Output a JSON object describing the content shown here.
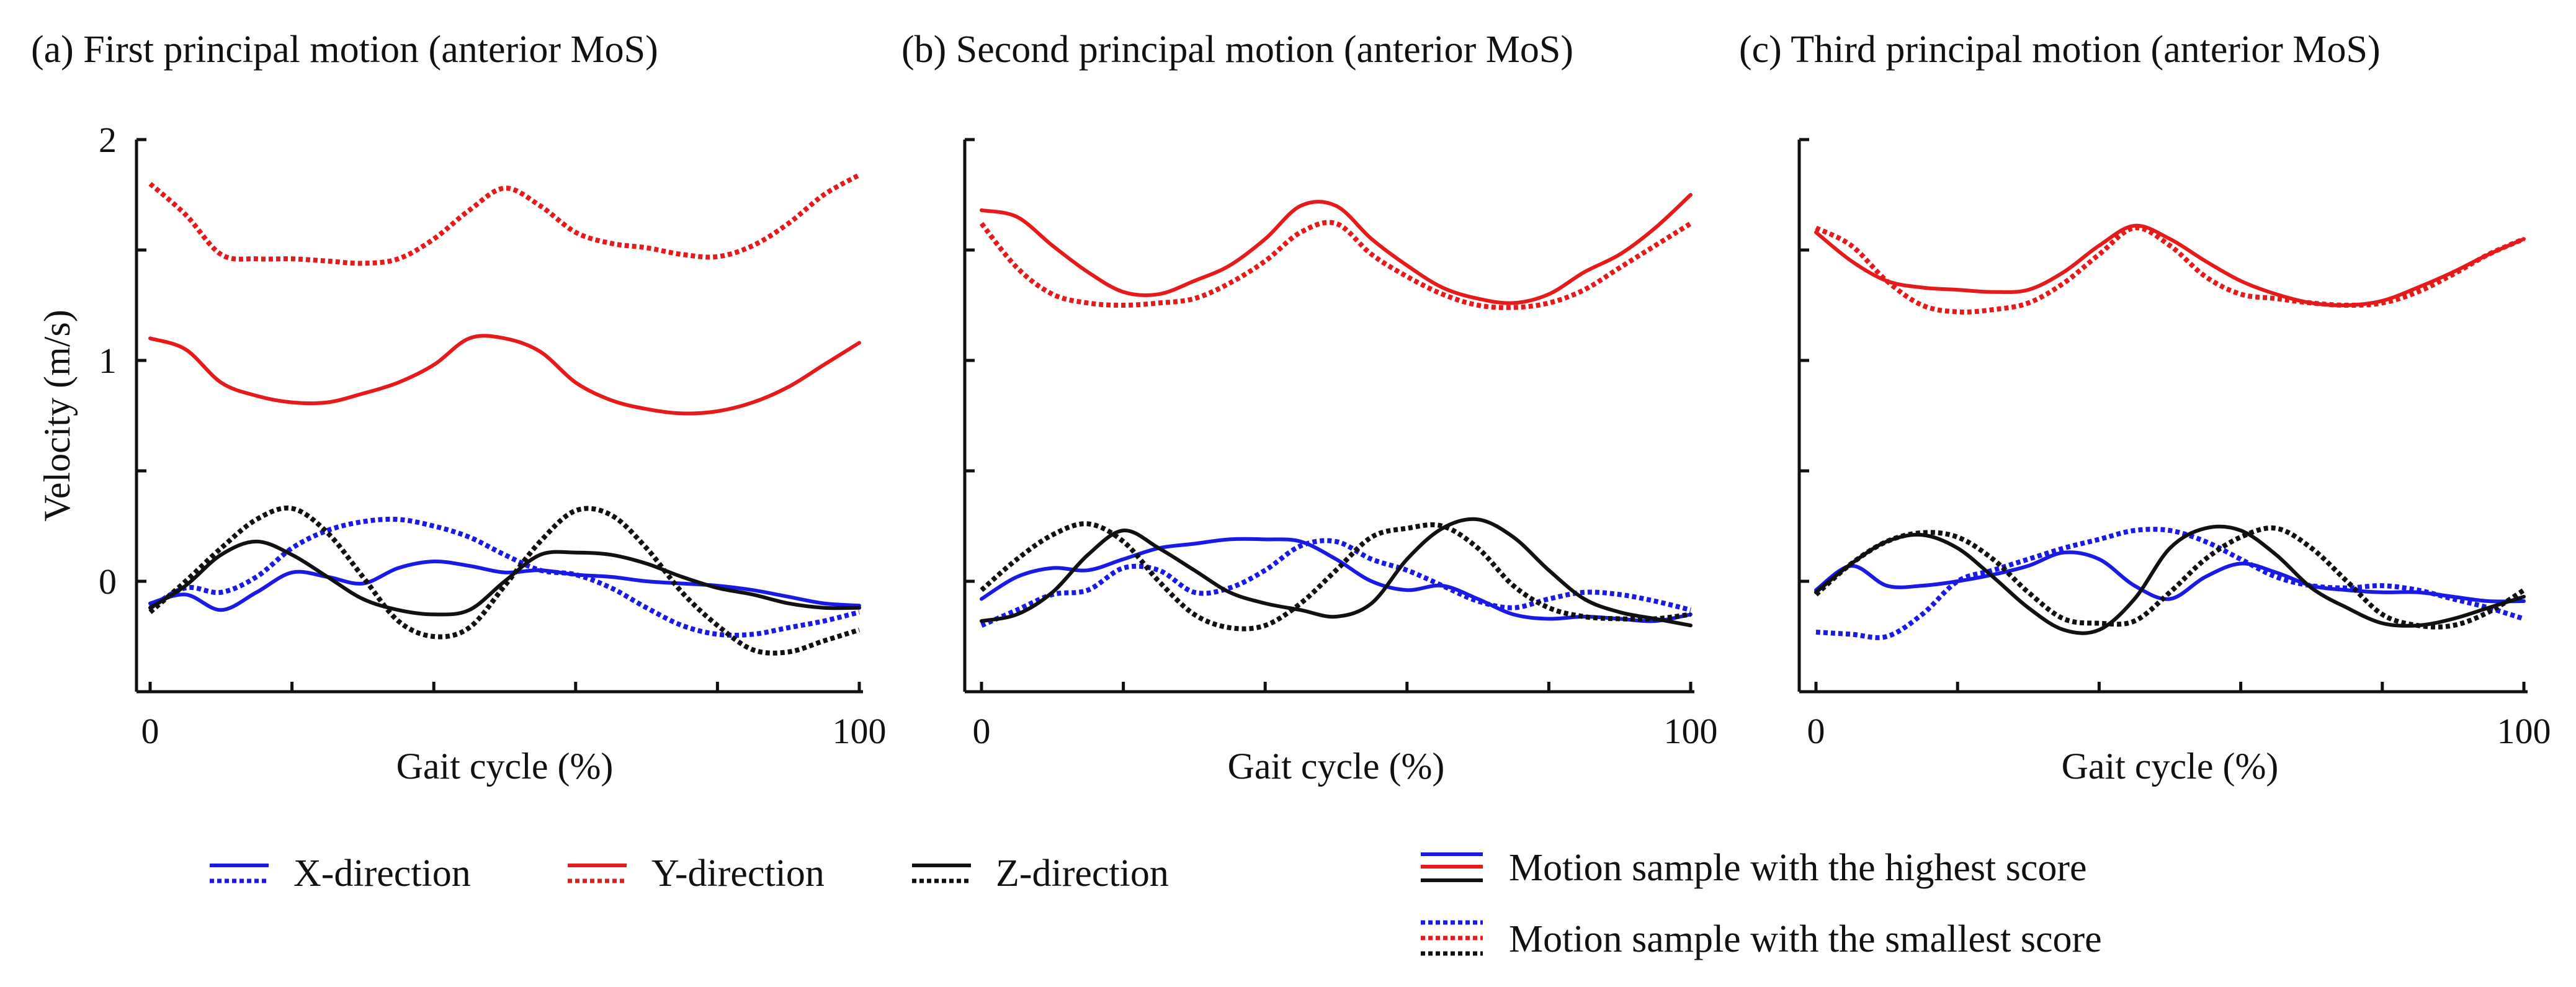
{
  "figure": {
    "legend": {
      "directions": [
        {
          "label": "X-direction",
          "color": "#1a1ae6"
        },
        {
          "label": "Y-direction",
          "color": "#e61a1a"
        },
        {
          "label": "Z-direction",
          "color": "#111111"
        }
      ],
      "styles": [
        {
          "label": "Motion sample with the highest score",
          "style": "solid"
        },
        {
          "label": "Motion sample with the smallest score",
          "style": "dotted"
        }
      ]
    }
  },
  "chart_data": [
    {
      "type": "line",
      "title": "(a) First principal motion (anterior MoS)",
      "xlabel": "Gait cycle (%)",
      "ylabel": "Velocity (m/s)",
      "xlim": [
        0,
        100
      ],
      "ylim": [
        -0.5,
        2
      ],
      "xticks": [
        0,
        20,
        40,
        60,
        80,
        100
      ],
      "xtick_labels": [
        "0",
        "",
        "",
        "",
        "",
        "100"
      ],
      "yticks": [
        0,
        0.5,
        1,
        1.5,
        2
      ],
      "ytick_labels": [
        "0",
        "",
        "1",
        "",
        "2"
      ],
      "series": [
        {
          "name": "X-direction, highest score",
          "color": "#1a1ae6",
          "style": "solid",
          "x": [
            0,
            5,
            10,
            15,
            20,
            25,
            30,
            35,
            40,
            45,
            50,
            55,
            60,
            65,
            70,
            75,
            80,
            85,
            90,
            95,
            100
          ],
          "y": [
            -0.1,
            -0.06,
            -0.13,
            -0.05,
            0.04,
            0.02,
            -0.01,
            0.06,
            0.09,
            0.07,
            0.04,
            0.05,
            0.03,
            0.02,
            0.0,
            -0.01,
            -0.02,
            -0.04,
            -0.07,
            -0.1,
            -0.11
          ]
        },
        {
          "name": "X-direction, smallest score",
          "color": "#1a1ae6",
          "style": "dotted",
          "x": [
            0,
            5,
            10,
            15,
            20,
            25,
            30,
            35,
            40,
            45,
            50,
            55,
            60,
            65,
            70,
            75,
            80,
            85,
            90,
            95,
            100
          ],
          "y": [
            -0.12,
            -0.03,
            -0.05,
            0.02,
            0.15,
            0.23,
            0.27,
            0.28,
            0.25,
            0.2,
            0.12,
            0.05,
            0.03,
            -0.03,
            -0.12,
            -0.2,
            -0.24,
            -0.24,
            -0.21,
            -0.18,
            -0.14
          ]
        },
        {
          "name": "Y-direction, highest score",
          "color": "#e61a1a",
          "style": "solid",
          "x": [
            0,
            5,
            10,
            15,
            20,
            25,
            30,
            35,
            40,
            45,
            50,
            55,
            60,
            65,
            70,
            75,
            80,
            85,
            90,
            95,
            100
          ],
          "y": [
            1.1,
            1.05,
            0.9,
            0.84,
            0.81,
            0.81,
            0.85,
            0.9,
            0.98,
            1.1,
            1.1,
            1.04,
            0.9,
            0.82,
            0.78,
            0.76,
            0.77,
            0.81,
            0.88,
            0.98,
            1.08
          ]
        },
        {
          "name": "Y-direction, smallest score",
          "color": "#e61a1a",
          "style": "dotted",
          "x": [
            0,
            5,
            10,
            15,
            20,
            25,
            30,
            35,
            40,
            45,
            50,
            55,
            60,
            65,
            70,
            75,
            80,
            85,
            90,
            95,
            100
          ],
          "y": [
            1.8,
            1.66,
            1.48,
            1.46,
            1.46,
            1.45,
            1.44,
            1.46,
            1.55,
            1.68,
            1.78,
            1.7,
            1.58,
            1.53,
            1.51,
            1.48,
            1.47,
            1.52,
            1.62,
            1.75,
            1.84
          ]
        },
        {
          "name": "Z-direction, highest score",
          "color": "#111111",
          "style": "solid",
          "x": [
            0,
            5,
            10,
            15,
            20,
            25,
            30,
            35,
            40,
            45,
            50,
            55,
            60,
            65,
            70,
            75,
            80,
            85,
            90,
            95,
            100
          ],
          "y": [
            -0.12,
            -0.02,
            0.12,
            0.18,
            0.12,
            0.02,
            -0.08,
            -0.13,
            -0.15,
            -0.13,
            0.0,
            0.12,
            0.13,
            0.12,
            0.08,
            0.02,
            -0.03,
            -0.06,
            -0.1,
            -0.12,
            -0.12
          ]
        },
        {
          "name": "Z-direction, smallest score",
          "color": "#111111",
          "style": "dotted",
          "x": [
            0,
            5,
            10,
            15,
            20,
            25,
            30,
            35,
            40,
            45,
            50,
            55,
            60,
            65,
            70,
            75,
            80,
            85,
            90,
            95,
            100
          ],
          "y": [
            -0.14,
            0.0,
            0.15,
            0.28,
            0.33,
            0.22,
            0.02,
            -0.18,
            -0.25,
            -0.21,
            -0.02,
            0.18,
            0.32,
            0.3,
            0.15,
            -0.05,
            -0.2,
            -0.31,
            -0.32,
            -0.27,
            -0.22
          ]
        }
      ]
    },
    {
      "type": "line",
      "title": "(b) Second principal motion (anterior MoS)",
      "xlabel": "Gait cycle (%)",
      "ylabel": "",
      "xlim": [
        0,
        100
      ],
      "ylim": [
        -0.5,
        2
      ],
      "xticks": [
        0,
        20,
        40,
        60,
        80,
        100
      ],
      "xtick_labels": [
        "0",
        "",
        "",
        "",
        "",
        "100"
      ],
      "yticks": [
        0,
        0.5,
        1,
        1.5,
        2
      ],
      "ytick_labels": [
        "",
        "",
        "",
        "",
        ""
      ],
      "series": [
        {
          "name": "X-direction, highest score",
          "color": "#1a1ae6",
          "style": "solid",
          "x": [
            0,
            5,
            10,
            15,
            20,
            25,
            30,
            35,
            40,
            45,
            50,
            55,
            60,
            65,
            70,
            75,
            80,
            85,
            90,
            95,
            100
          ],
          "y": [
            -0.08,
            0.02,
            0.06,
            0.05,
            0.1,
            0.15,
            0.17,
            0.19,
            0.19,
            0.18,
            0.1,
            0.0,
            -0.04,
            -0.02,
            -0.08,
            -0.15,
            -0.17,
            -0.16,
            -0.17,
            -0.18,
            -0.15
          ]
        },
        {
          "name": "X-direction, smallest score",
          "color": "#1a1ae6",
          "style": "dotted",
          "x": [
            0,
            5,
            10,
            15,
            20,
            25,
            30,
            35,
            40,
            45,
            50,
            55,
            60,
            65,
            70,
            75,
            80,
            85,
            90,
            95,
            100
          ],
          "y": [
            -0.2,
            -0.13,
            -0.06,
            -0.04,
            0.06,
            0.05,
            -0.05,
            -0.03,
            0.05,
            0.16,
            0.18,
            0.1,
            0.05,
            -0.02,
            -0.09,
            -0.12,
            -0.08,
            -0.05,
            -0.06,
            -0.09,
            -0.13
          ]
        },
        {
          "name": "Y-direction, highest score",
          "color": "#e61a1a",
          "style": "solid",
          "x": [
            0,
            5,
            10,
            15,
            20,
            25,
            30,
            35,
            40,
            45,
            50,
            55,
            60,
            65,
            70,
            75,
            80,
            85,
            90,
            95,
            100
          ],
          "y": [
            1.68,
            1.65,
            1.52,
            1.4,
            1.31,
            1.3,
            1.36,
            1.43,
            1.55,
            1.7,
            1.7,
            1.55,
            1.43,
            1.33,
            1.28,
            1.26,
            1.3,
            1.4,
            1.48,
            1.6,
            1.75
          ]
        },
        {
          "name": "Y-direction, smallest score",
          "color": "#e61a1a",
          "style": "dotted",
          "x": [
            0,
            5,
            10,
            15,
            20,
            25,
            30,
            35,
            40,
            45,
            50,
            55,
            60,
            65,
            70,
            75,
            80,
            85,
            90,
            95,
            100
          ],
          "y": [
            1.62,
            1.42,
            1.3,
            1.26,
            1.25,
            1.26,
            1.28,
            1.35,
            1.45,
            1.58,
            1.62,
            1.48,
            1.38,
            1.3,
            1.25,
            1.24,
            1.26,
            1.32,
            1.42,
            1.52,
            1.62
          ]
        },
        {
          "name": "Z-direction, highest score",
          "color": "#111111",
          "style": "solid",
          "x": [
            0,
            5,
            10,
            15,
            20,
            25,
            30,
            35,
            40,
            45,
            50,
            55,
            60,
            65,
            70,
            75,
            80,
            85,
            90,
            95,
            100
          ],
          "y": [
            -0.18,
            -0.15,
            -0.05,
            0.12,
            0.23,
            0.15,
            0.05,
            -0.05,
            -0.1,
            -0.13,
            -0.16,
            -0.1,
            0.1,
            0.24,
            0.28,
            0.2,
            0.05,
            -0.08,
            -0.14,
            -0.17,
            -0.2
          ]
        },
        {
          "name": "Z-direction, smallest score",
          "color": "#111111",
          "style": "dotted",
          "x": [
            0,
            5,
            10,
            15,
            20,
            25,
            30,
            35,
            40,
            45,
            50,
            55,
            60,
            65,
            70,
            75,
            80,
            85,
            90,
            95,
            100
          ],
          "y": [
            -0.04,
            0.1,
            0.21,
            0.26,
            0.18,
            0.0,
            -0.15,
            -0.21,
            -0.2,
            -0.1,
            0.05,
            0.2,
            0.24,
            0.25,
            0.15,
            -0.02,
            -0.12,
            -0.16,
            -0.17,
            -0.17,
            -0.15
          ]
        }
      ]
    },
    {
      "type": "line",
      "title": "(c) Third principal motion (anterior MoS)",
      "xlabel": "Gait cycle (%)",
      "ylabel": "",
      "xlim": [
        0,
        100
      ],
      "ylim": [
        -0.5,
        2
      ],
      "xticks": [
        0,
        20,
        40,
        60,
        80,
        100
      ],
      "xtick_labels": [
        "0",
        "",
        "",
        "",
        "",
        "100"
      ],
      "yticks": [
        0,
        0.5,
        1,
        1.5,
        2
      ],
      "ytick_labels": [
        "",
        "",
        "",
        "",
        ""
      ],
      "series": [
        {
          "name": "X-direction, highest score",
          "color": "#1a1ae6",
          "style": "solid",
          "x": [
            0,
            5,
            10,
            15,
            20,
            25,
            30,
            35,
            40,
            45,
            50,
            55,
            60,
            65,
            70,
            75,
            80,
            85,
            90,
            95,
            100
          ],
          "y": [
            -0.04,
            0.07,
            -0.02,
            -0.02,
            0.0,
            0.03,
            0.07,
            0.13,
            0.1,
            -0.02,
            -0.08,
            0.02,
            0.08,
            0.04,
            -0.02,
            -0.04,
            -0.05,
            -0.05,
            -0.07,
            -0.09,
            -0.09
          ]
        },
        {
          "name": "X-direction, smallest score",
          "color": "#1a1ae6",
          "style": "dotted",
          "x": [
            0,
            5,
            10,
            15,
            20,
            25,
            30,
            35,
            40,
            45,
            50,
            55,
            60,
            65,
            70,
            75,
            80,
            85,
            90,
            95,
            100
          ],
          "y": [
            -0.23,
            -0.24,
            -0.25,
            -0.15,
            0.0,
            0.05,
            0.1,
            0.15,
            0.19,
            0.23,
            0.23,
            0.18,
            0.1,
            0.02,
            -0.02,
            -0.03,
            -0.02,
            -0.04,
            -0.08,
            -0.12,
            -0.17
          ]
        },
        {
          "name": "Y-direction, highest score",
          "color": "#e61a1a",
          "style": "solid",
          "x": [
            0,
            5,
            10,
            15,
            20,
            25,
            30,
            35,
            40,
            45,
            50,
            55,
            60,
            65,
            70,
            75,
            80,
            85,
            90,
            95,
            100
          ],
          "y": [
            1.58,
            1.45,
            1.36,
            1.33,
            1.32,
            1.31,
            1.32,
            1.4,
            1.52,
            1.61,
            1.55,
            1.45,
            1.36,
            1.3,
            1.26,
            1.25,
            1.27,
            1.33,
            1.4,
            1.48,
            1.55
          ]
        },
        {
          "name": "Y-direction, smallest score",
          "color": "#e61a1a",
          "style": "dotted",
          "x": [
            0,
            5,
            10,
            15,
            20,
            25,
            30,
            35,
            40,
            45,
            50,
            55,
            60,
            65,
            70,
            75,
            80,
            85,
            90,
            95,
            100
          ],
          "y": [
            1.6,
            1.52,
            1.36,
            1.25,
            1.22,
            1.23,
            1.26,
            1.35,
            1.48,
            1.6,
            1.52,
            1.38,
            1.3,
            1.28,
            1.26,
            1.25,
            1.26,
            1.31,
            1.39,
            1.48,
            1.55
          ]
        },
        {
          "name": "Z-direction, highest score",
          "color": "#111111",
          "style": "solid",
          "x": [
            0,
            5,
            10,
            15,
            20,
            25,
            30,
            35,
            40,
            45,
            50,
            55,
            60,
            65,
            70,
            75,
            80,
            85,
            90,
            95,
            100
          ],
          "y": [
            -0.05,
            0.08,
            0.18,
            0.21,
            0.15,
            0.02,
            -0.12,
            -0.22,
            -0.22,
            -0.08,
            0.15,
            0.24,
            0.23,
            0.12,
            -0.03,
            -0.12,
            -0.19,
            -0.2,
            -0.17,
            -0.12,
            -0.07
          ]
        },
        {
          "name": "Z-direction, smallest score",
          "color": "#111111",
          "style": "dotted",
          "x": [
            0,
            5,
            10,
            15,
            20,
            25,
            30,
            35,
            40,
            45,
            50,
            55,
            60,
            65,
            70,
            75,
            80,
            85,
            90,
            95,
            100
          ],
          "y": [
            -0.06,
            0.08,
            0.18,
            0.22,
            0.2,
            0.1,
            -0.05,
            -0.17,
            -0.19,
            -0.18,
            -0.05,
            0.1,
            0.2,
            0.24,
            0.15,
            0.0,
            -0.15,
            -0.2,
            -0.2,
            -0.14,
            -0.04
          ]
        }
      ]
    }
  ]
}
